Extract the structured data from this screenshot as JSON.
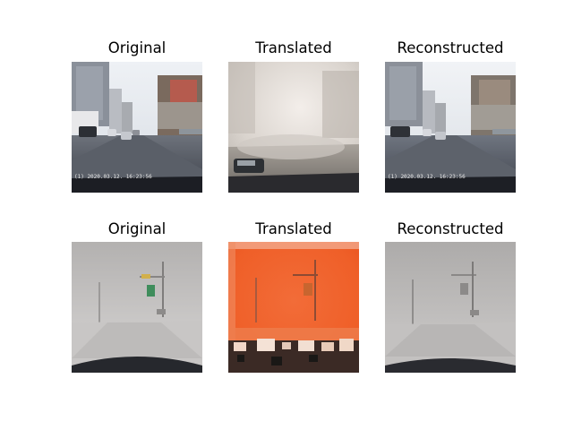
{
  "figure": {
    "rows": [
      {
        "panels": [
          {
            "title": "Original",
            "overlay": "(1) 2020.03.12. 16:23:56"
          },
          {
            "title": "Translated",
            "overlay": ""
          },
          {
            "title": "Reconstructed",
            "overlay": "(1) 2020.03.12. 16:23:56"
          }
        ]
      },
      {
        "panels": [
          {
            "title": "Original",
            "overlay": ""
          },
          {
            "title": "Translated",
            "overlay": ""
          },
          {
            "title": "Reconstructed",
            "overlay": ""
          }
        ]
      }
    ]
  },
  "colors": {
    "background": "#ffffff",
    "clear_road": "#4a4f5a",
    "fog": "#a9a7a5",
    "orange_tint": "#f0642a"
  }
}
